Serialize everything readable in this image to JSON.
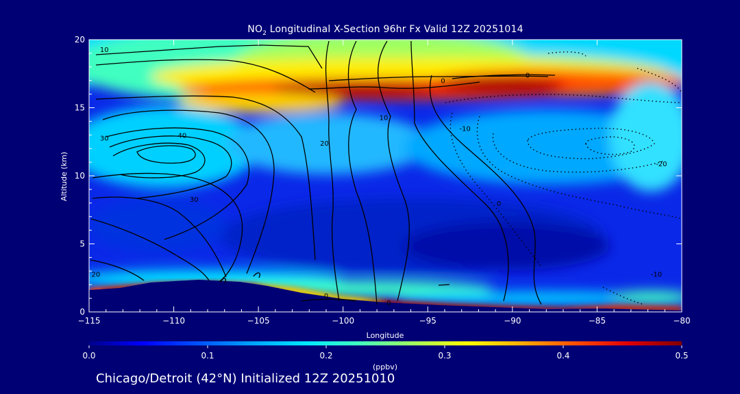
{
  "title": {
    "prefix": "NO",
    "subscript": "2",
    "rest": " Longitudinal X-Section 96hr  Fx Valid 12Z 20251014"
  },
  "footer": "Chicago/Detroit (42°N) Initialized 12Z 20251010",
  "chart_data": {
    "type": "heatmap",
    "xlabel": "Longitude",
    "ylabel": "Altitude (km)",
    "xlim": [
      -115,
      -80
    ],
    "ylim": [
      0,
      20
    ],
    "xticks": [
      -115,
      -110,
      -105,
      -100,
      -95,
      -90,
      -85,
      -80
    ],
    "xtick_labels": [
      "−115",
      "−110",
      "−105",
      "−100",
      "−95",
      "−90",
      "−85",
      "−80"
    ],
    "yticks": [
      0,
      5,
      10,
      15,
      20
    ],
    "ytick_labels": [
      "0",
      "5",
      "10",
      "15",
      "20"
    ],
    "colorbar": {
      "label": "(ppbv)",
      "min": 0.0,
      "max": 0.5,
      "ticks": [
        0.0,
        0.1,
        0.2,
        0.3,
        0.4,
        0.5
      ],
      "tick_labels": [
        "0.0",
        "0.1",
        "0.2",
        "0.3",
        "0.4",
        "0.5"
      ],
      "colors": [
        "#00008c",
        "#0000ff",
        "#0050ff",
        "#00a0ff",
        "#00e6ff",
        "#40ffbf",
        "#a0ff60",
        "#ffff00",
        "#ffb000",
        "#ff5000",
        "#e00000",
        "#800000"
      ]
    },
    "contour_labels": [
      {
        "text": "10",
        "lon": -114.1,
        "alt": 19.1
      },
      {
        "text": "30",
        "lon": -114.1,
        "alt": 12.6
      },
      {
        "text": "40",
        "lon": -109.5,
        "alt": 12.8
      },
      {
        "text": "30",
        "lon": -108.8,
        "alt": 8.1
      },
      {
        "text": "20",
        "lon": -114.6,
        "alt": 2.6
      },
      {
        "text": "20",
        "lon": -101.1,
        "alt": 12.2
      },
      {
        "text": "10",
        "lon": -97.6,
        "alt": 14.1
      },
      {
        "text": "0",
        "lon": -94.1,
        "alt": 16.8
      },
      {
        "text": "0",
        "lon": -89.1,
        "alt": 17.2
      },
      {
        "text": "-10",
        "lon": -92.8,
        "alt": 13.3
      },
      {
        "text": "-20",
        "lon": -81.2,
        "alt": 10.7
      },
      {
        "text": "0",
        "lon": -90.8,
        "alt": 7.8
      },
      {
        "text": "-10",
        "lon": -81.5,
        "alt": 2.6
      },
      {
        "text": "0",
        "lon": -101.0,
        "alt": 1.0
      },
      {
        "text": "0",
        "lon": -97.3,
        "alt": 0.5
      }
    ]
  }
}
